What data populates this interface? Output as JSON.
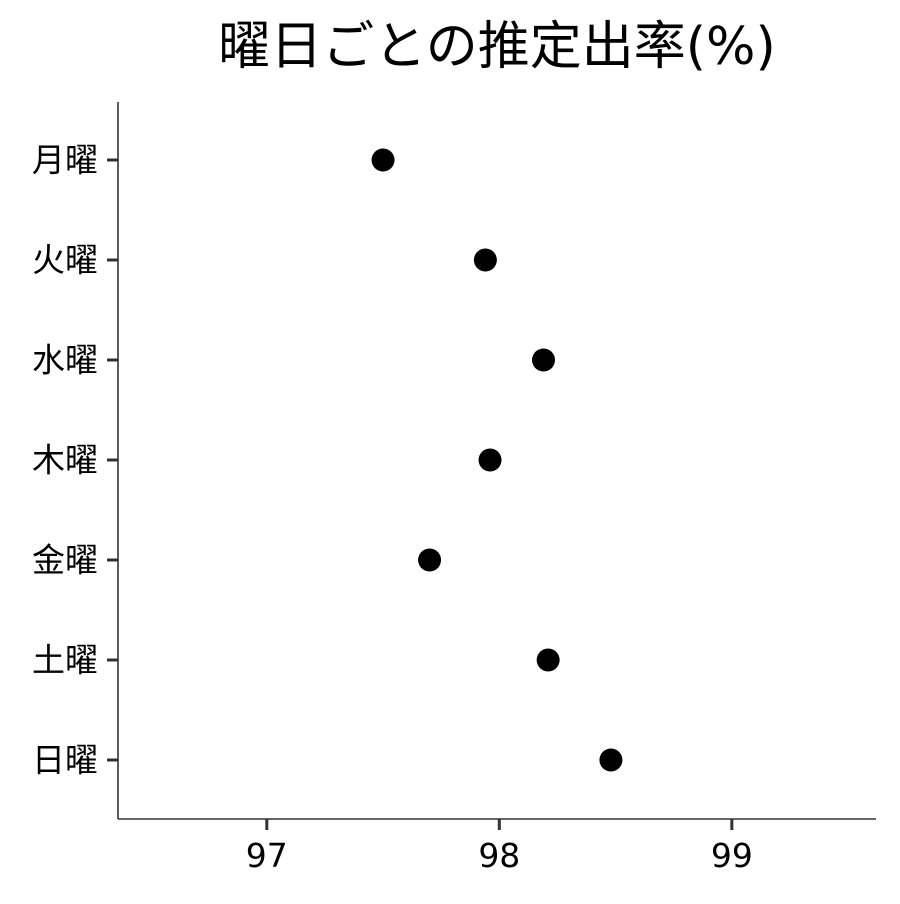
{
  "chart_data": {
    "type": "scatter",
    "title": "曜日ごとの推定出率(%)",
    "xlabel": "",
    "ylabel": "",
    "categories": [
      "月曜",
      "火曜",
      "水曜",
      "木曜",
      "金曜",
      "土曜",
      "日曜"
    ],
    "values": [
      97.5,
      97.94,
      98.19,
      97.96,
      97.7,
      98.21,
      98.48
    ],
    "x_ticks": [
      97,
      98,
      99
    ],
    "xlim": [
      96.36,
      99.62
    ],
    "grid": false,
    "legend": "none",
    "colors": {
      "point": "#000000",
      "axis": "#333333",
      "tick": "#333333"
    }
  }
}
